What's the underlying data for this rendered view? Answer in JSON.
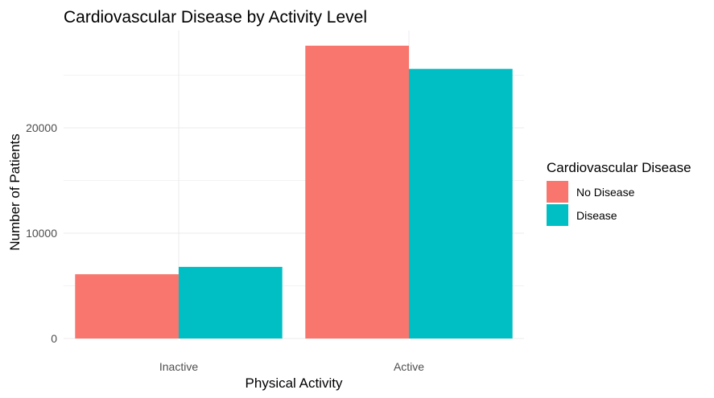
{
  "chart_data": {
    "type": "bar",
    "title": "Cardiovascular Disease by Activity Level",
    "xlabel": "Physical Activity",
    "ylabel": "Number of Patients",
    "categories": [
      "Inactive",
      "Active"
    ],
    "series": [
      {
        "name": "No Disease",
        "values": [
          6100,
          27800
        ],
        "color": "#F8766D"
      },
      {
        "name": "Disease",
        "values": [
          6800,
          25600
        ],
        "color": "#00BFC4"
      }
    ],
    "ylim": [
      0,
      30000
    ],
    "y_ticks": [
      0,
      10000,
      20000
    ],
    "y_tick_labels": [
      "0",
      "10000",
      "20000"
    ],
    "grid": true,
    "legend": {
      "title": "Cardiovascular Disease",
      "position": "right"
    }
  }
}
